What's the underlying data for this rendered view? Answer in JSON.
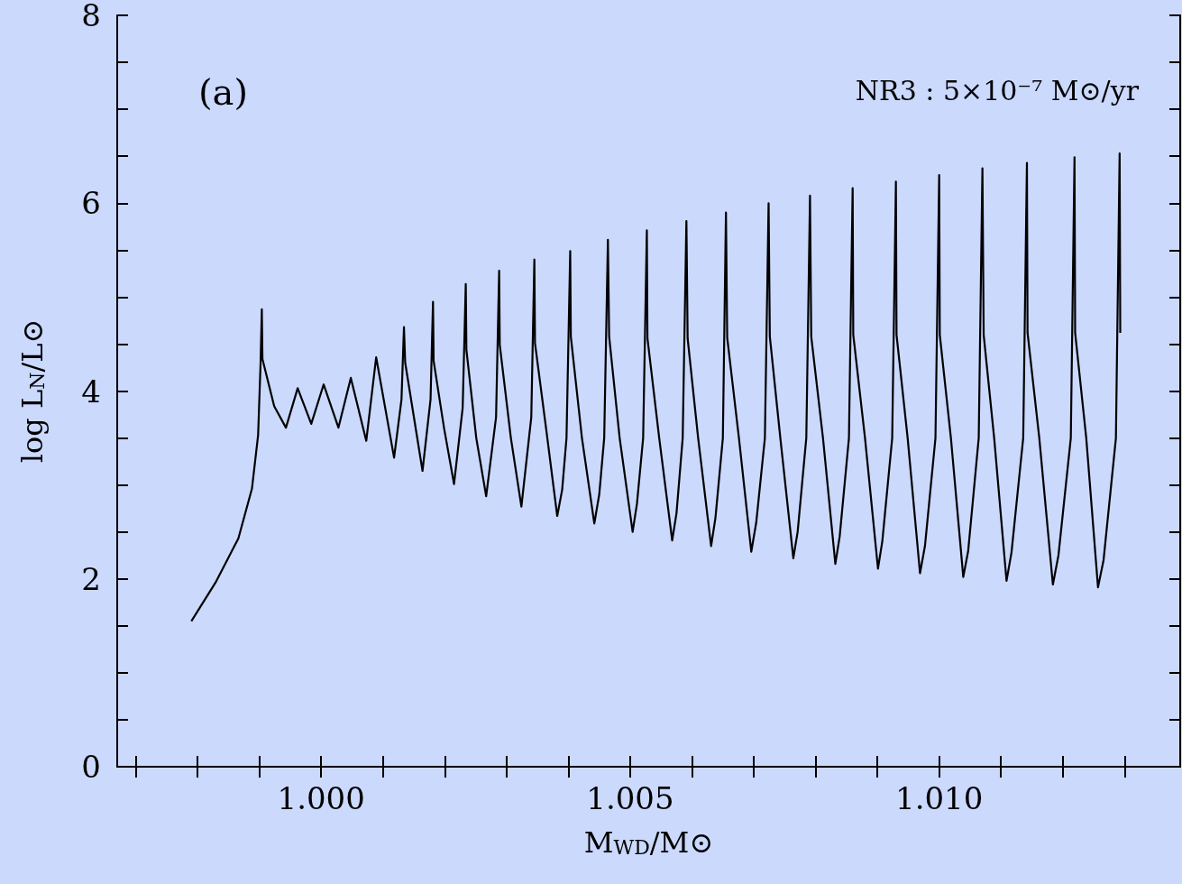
{
  "chart_data": {
    "type": "line",
    "xlabel": "M$_{WD}$/M⊙",
    "ylabel": "log L$_{N}$/L⊙",
    "annotations": [
      "(a)",
      "NR3 : 5×10⁻⁷ M⊙/yr"
    ],
    "xlim": [
      0.9967,
      1.0139
    ],
    "xticks": [
      {
        "value": 0.997,
        "label": null
      },
      {
        "value": 0.998,
        "label": null
      },
      {
        "value": 0.999,
        "label": null
      },
      {
        "value": 1,
        "label": "1.000"
      },
      {
        "value": 1.001,
        "label": null
      },
      {
        "value": 1.002,
        "label": null
      },
      {
        "value": 1.003,
        "label": null
      },
      {
        "value": 1.004,
        "label": null
      },
      {
        "value": 1.005,
        "label": "1.005"
      },
      {
        "value": 1.006,
        "label": null
      },
      {
        "value": 1.007,
        "label": null
      },
      {
        "value": 1.008,
        "label": null
      },
      {
        "value": 1.009,
        "label": null
      },
      {
        "value": 1.01,
        "label": "1.010"
      },
      {
        "value": 1.011,
        "label": null
      },
      {
        "value": 1.012,
        "label": null
      },
      {
        "value": 1.013,
        "label": null
      }
    ],
    "ylim": [
      0,
      8
    ],
    "yticks": [
      0,
      {
        "value": 0.5,
        "label": null
      },
      {
        "value": 1,
        "label": null
      },
      {
        "value": 1.5,
        "label": null
      },
      2,
      {
        "value": 2.5,
        "label": null
      },
      {
        "value": 3,
        "label": null
      },
      {
        "value": 3.5,
        "label": null
      },
      4,
      {
        "value": 4.5,
        "label": null
      },
      {
        "value": 5,
        "label": null
      },
      {
        "value": 5.5,
        "label": null
      },
      6,
      {
        "value": 6.5,
        "label": null
      },
      {
        "value": 7,
        "label": null
      },
      {
        "value": 7.5,
        "label": null
      },
      8
    ],
    "grid": false,
    "marker": "none",
    "line_style": "solid",
    "series": [
      {
        "color": "#000000",
        "x": [
          0.9979,
          0.99829,
          0.99866,
          0.99888,
          0.99898,
          0.99902,
          0.99904,
          0.99905,
          0.99924,
          0.99943,
          0.99962,
          0.99984,
          1.00004,
          1.00028,
          1.00048,
          1.00073,
          1.00089,
          1.00118,
          1.0013,
          1.00134,
          1.00136,
          1.00164,
          1.00177,
          1.00181,
          1.00182,
          1.00199,
          1.00215,
          1.00229,
          1.00234,
          1.00235,
          1.00251,
          1.00267,
          1.00283,
          1.00288,
          1.00289,
          1.00307,
          1.00324,
          1.0034,
          1.00345,
          1.00346,
          1.00364,
          1.00382,
          1.0039,
          1.00397,
          1.00403,
          1.00404,
          1.00422,
          1.00442,
          1.0045,
          1.00458,
          1.00464,
          1.00466,
          1.00483,
          1.00504,
          1.00511,
          1.00521,
          1.00527,
          1.00528,
          1.00547,
          1.00568,
          1.00575,
          1.00585,
          1.00591,
          1.00593,
          1.0061,
          1.00631,
          1.00638,
          1.0065,
          1.00655,
          1.00657,
          1.00676,
          1.00696,
          1.00704,
          1.00718,
          1.00724,
          1.00726,
          1.00743,
          1.00764,
          1.00771,
          1.00785,
          1.00791,
          1.00793,
          1.00812,
          1.00832,
          1.00839,
          1.00854,
          1.0086,
          1.00861,
          1.0088,
          1.00901,
          1.00908,
          1.00924,
          1.0093,
          1.00931,
          1.00949,
          1.00969,
          1.00977,
          1.00994,
          1.01,
          1.01001,
          1.01019,
          1.01039,
          1.01047,
          1.01064,
          1.0107,
          1.01072,
          1.01089,
          1.01109,
          1.01117,
          1.01136,
          1.01142,
          1.01143,
          1.01162,
          1.01184,
          1.01193,
          1.01213,
          1.01219,
          1.0122,
          1.01238,
          1.01257,
          1.01266,
          1.01286,
          1.01292,
          1.01293
        ],
        "values": [
          1.55,
          1.96,
          2.43,
          2.96,
          3.53,
          4.3,
          4.87,
          4.34,
          3.84,
          3.61,
          4.03,
          3.65,
          4.07,
          3.61,
          4.14,
          3.47,
          4.36,
          3.29,
          3.91,
          4.68,
          4.3,
          3.15,
          3.91,
          4.95,
          4.32,
          3.6,
          3.01,
          3.82,
          5.14,
          4.44,
          3.5,
          2.88,
          3.72,
          5.28,
          4.49,
          3.5,
          2.77,
          3.72,
          5.4,
          4.51,
          3.6,
          2.67,
          2.95,
          3.5,
          5.49,
          4.58,
          3.5,
          2.59,
          2.9,
          3.5,
          5.61,
          4.58,
          3.5,
          2.5,
          2.8,
          3.5,
          5.71,
          4.56,
          3.5,
          2.41,
          2.7,
          3.5,
          5.81,
          4.56,
          3.5,
          2.35,
          2.65,
          3.5,
          5.9,
          4.57,
          3.5,
          2.29,
          2.6,
          3.5,
          6,
          4.58,
          3.5,
          2.22,
          2.5,
          3.5,
          6.08,
          4.58,
          3.5,
          2.16,
          2.45,
          3.5,
          6.16,
          4.6,
          3.5,
          2.11,
          2.4,
          3.5,
          6.23,
          4.6,
          3.5,
          2.06,
          2.35,
          3.5,
          6.3,
          4.6,
          3.5,
          2.02,
          2.3,
          3.5,
          6.37,
          4.6,
          3.5,
          1.98,
          2.28,
          3.5,
          6.43,
          4.62,
          3.5,
          1.94,
          2.25,
          3.5,
          6.49,
          4.62,
          3.5,
          1.91,
          2.2,
          3.5,
          6.53,
          4.62
        ]
      }
    ]
  }
}
